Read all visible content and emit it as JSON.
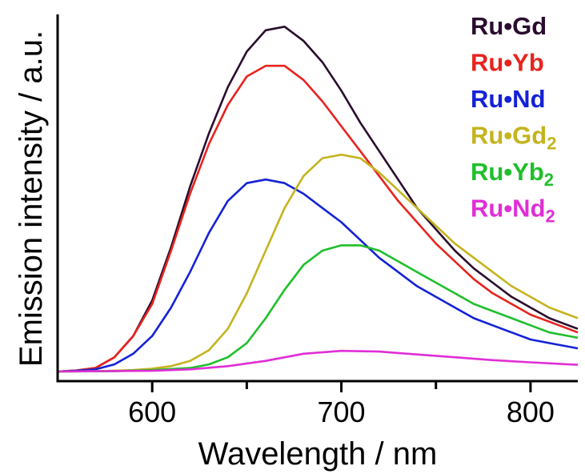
{
  "chart_data": {
    "type": "line",
    "xlabel": "Wavelength / nm",
    "ylabel": "Emission intensity / a.u.",
    "xlim": [
      550,
      825
    ],
    "ylim": [
      0,
      1.0
    ],
    "x_ticks": [
      600,
      700,
      800
    ],
    "x_tick_labels": [
      "600",
      "700",
      "800"
    ],
    "minor_x_ticks": [
      650,
      750
    ],
    "y_ticks_shown": false,
    "grid": false,
    "legend_position": "top-right",
    "series": [
      {
        "name": "Ru•Gd",
        "label_main": "Ru•Gd",
        "label_sub": "",
        "color": "#2a0d2e",
        "points": [
          [
            550,
            0.0
          ],
          [
            560,
            0.003
          ],
          [
            570,
            0.01
          ],
          [
            580,
            0.04
          ],
          [
            590,
            0.1
          ],
          [
            600,
            0.2
          ],
          [
            610,
            0.35
          ],
          [
            620,
            0.52
          ],
          [
            630,
            0.67
          ],
          [
            640,
            0.8
          ],
          [
            650,
            0.9
          ],
          [
            660,
            0.96
          ],
          [
            670,
            0.97
          ],
          [
            680,
            0.93
          ],
          [
            690,
            0.87
          ],
          [
            700,
            0.79
          ],
          [
            710,
            0.7
          ],
          [
            720,
            0.62
          ],
          [
            730,
            0.54
          ],
          [
            740,
            0.46
          ],
          [
            750,
            0.4
          ],
          [
            760,
            0.34
          ],
          [
            770,
            0.29
          ],
          [
            780,
            0.25
          ],
          [
            790,
            0.21
          ],
          [
            800,
            0.18
          ],
          [
            810,
            0.15
          ],
          [
            820,
            0.13
          ],
          [
            825,
            0.12
          ]
        ]
      },
      {
        "name": "Ru•Yb",
        "label_main": "Ru•Yb",
        "label_sub": "",
        "color": "#e8231e",
        "points": [
          [
            550,
            0.0
          ],
          [
            560,
            0.003
          ],
          [
            570,
            0.01
          ],
          [
            580,
            0.04
          ],
          [
            590,
            0.1
          ],
          [
            600,
            0.19
          ],
          [
            610,
            0.34
          ],
          [
            620,
            0.5
          ],
          [
            630,
            0.64
          ],
          [
            640,
            0.75
          ],
          [
            650,
            0.83
          ],
          [
            660,
            0.86
          ],
          [
            670,
            0.86
          ],
          [
            680,
            0.82
          ],
          [
            690,
            0.76
          ],
          [
            700,
            0.69
          ],
          [
            710,
            0.62
          ],
          [
            720,
            0.55
          ],
          [
            730,
            0.48
          ],
          [
            740,
            0.42
          ],
          [
            750,
            0.36
          ],
          [
            760,
            0.31
          ],
          [
            770,
            0.26
          ],
          [
            780,
            0.22
          ],
          [
            790,
            0.19
          ],
          [
            800,
            0.16
          ],
          [
            810,
            0.14
          ],
          [
            820,
            0.12
          ],
          [
            825,
            0.11
          ]
        ]
      },
      {
        "name": "Ru•Nd",
        "label_main": "Ru•Nd",
        "label_sub": "",
        "color": "#1422d6",
        "points": [
          [
            550,
            0.0
          ],
          [
            560,
            0.002
          ],
          [
            570,
            0.006
          ],
          [
            580,
            0.02
          ],
          [
            590,
            0.05
          ],
          [
            600,
            0.1
          ],
          [
            610,
            0.18
          ],
          [
            620,
            0.28
          ],
          [
            630,
            0.39
          ],
          [
            640,
            0.48
          ],
          [
            650,
            0.53
          ],
          [
            660,
            0.54
          ],
          [
            670,
            0.53
          ],
          [
            680,
            0.5
          ],
          [
            690,
            0.46
          ],
          [
            700,
            0.42
          ],
          [
            710,
            0.37
          ],
          [
            720,
            0.32
          ],
          [
            730,
            0.28
          ],
          [
            740,
            0.24
          ],
          [
            750,
            0.21
          ],
          [
            760,
            0.18
          ],
          [
            770,
            0.15
          ],
          [
            780,
            0.13
          ],
          [
            790,
            0.11
          ],
          [
            800,
            0.09
          ],
          [
            810,
            0.08
          ],
          [
            820,
            0.07
          ],
          [
            825,
            0.065
          ]
        ]
      },
      {
        "name": "Ru•Gd2",
        "label_main": "Ru•Gd",
        "label_sub": "2",
        "color": "#c4b41e",
        "points": [
          [
            550,
            0.0
          ],
          [
            570,
            0.001
          ],
          [
            590,
            0.004
          ],
          [
            600,
            0.008
          ],
          [
            610,
            0.015
          ],
          [
            620,
            0.03
          ],
          [
            630,
            0.06
          ],
          [
            640,
            0.12
          ],
          [
            650,
            0.22
          ],
          [
            660,
            0.34
          ],
          [
            670,
            0.46
          ],
          [
            680,
            0.55
          ],
          [
            690,
            0.6
          ],
          [
            700,
            0.61
          ],
          [
            710,
            0.6
          ],
          [
            720,
            0.56
          ],
          [
            730,
            0.51
          ],
          [
            740,
            0.46
          ],
          [
            750,
            0.41
          ],
          [
            760,
            0.36
          ],
          [
            770,
            0.32
          ],
          [
            780,
            0.28
          ],
          [
            790,
            0.24
          ],
          [
            800,
            0.21
          ],
          [
            810,
            0.18
          ],
          [
            820,
            0.16
          ],
          [
            825,
            0.15
          ]
        ]
      },
      {
        "name": "Ru•Yb2",
        "label_main": "Ru•Yb",
        "label_sub": "2",
        "color": "#1fbf2a",
        "points": [
          [
            550,
            0.0
          ],
          [
            580,
            0.001
          ],
          [
            600,
            0.004
          ],
          [
            620,
            0.01
          ],
          [
            630,
            0.02
          ],
          [
            640,
            0.04
          ],
          [
            650,
            0.08
          ],
          [
            660,
            0.15
          ],
          [
            670,
            0.23
          ],
          [
            680,
            0.3
          ],
          [
            690,
            0.34
          ],
          [
            700,
            0.355
          ],
          [
            710,
            0.355
          ],
          [
            720,
            0.34
          ],
          [
            730,
            0.31
          ],
          [
            740,
            0.28
          ],
          [
            750,
            0.25
          ],
          [
            760,
            0.22
          ],
          [
            770,
            0.19
          ],
          [
            780,
            0.17
          ],
          [
            790,
            0.15
          ],
          [
            800,
            0.13
          ],
          [
            810,
            0.11
          ],
          [
            820,
            0.1
          ],
          [
            825,
            0.095
          ]
        ]
      },
      {
        "name": "Ru•Nd2",
        "label_main": "Ru•Nd",
        "label_sub": "2",
        "color": "#e02ed6",
        "points": [
          [
            550,
            0.0
          ],
          [
            600,
            0.002
          ],
          [
            620,
            0.006
          ],
          [
            640,
            0.015
          ],
          [
            660,
            0.03
          ],
          [
            680,
            0.05
          ],
          [
            700,
            0.058
          ],
          [
            720,
            0.056
          ],
          [
            740,
            0.048
          ],
          [
            760,
            0.04
          ],
          [
            780,
            0.032
          ],
          [
            800,
            0.026
          ],
          [
            820,
            0.02
          ],
          [
            825,
            0.019
          ]
        ]
      }
    ]
  }
}
